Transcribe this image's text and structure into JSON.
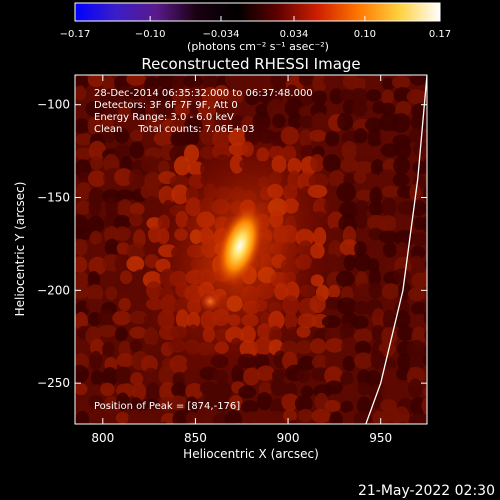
{
  "chart_data": {
    "type": "heatmap",
    "title": "Reconstructed RHESSI Image",
    "xlabel": "Heliocentric X (arcsec)",
    "ylabel": "Heliocentric Y (arcsec)",
    "xlim": [
      785,
      975
    ],
    "ylim": [
      -272,
      -84
    ],
    "x_ticks": [
      800,
      850,
      900,
      950
    ],
    "y_ticks": [
      -100,
      -150,
      -200,
      -250
    ],
    "x_tick_labels": [
      "800",
      "850",
      "900",
      "950"
    ],
    "y_tick_labels": [
      "−100",
      "−150",
      "−200",
      "−250"
    ],
    "colorbar": {
      "ticks": [
        -0.17,
        -0.1,
        -0.034,
        0.034,
        0.1,
        0.17
      ],
      "tick_labels": [
        "−0.17",
        "−0.10",
        "−0.034",
        "0.034",
        "0.10",
        "0.17"
      ],
      "unit_label": "(photons cm⁻² s⁻¹ asec⁻²)",
      "range": [
        -0.17,
        0.17
      ],
      "colors": [
        "#0000ff",
        "#3a1ec8",
        "#5a1a8c",
        "#1a0010",
        "#000000",
        "#600000",
        "#d02000",
        "#ff7800",
        "#ffd040",
        "#ffffff"
      ]
    },
    "annotations": [
      "28-Dec-2014 06:35:32.000 to 06:37:48.000",
      "Detectors: 3F 6F 7F 9F, Att 0",
      "Energy Range: 3.0 - 6.0 keV",
      "Clean     Total counts: 7.06E+03"
    ],
    "peak_label": "Position of Peak = [874,-176]",
    "peak": {
      "x": 874,
      "y": -176,
      "value": 0.17
    },
    "secondary_source": {
      "x": 858,
      "y": -206,
      "value": 0.09
    },
    "limb_points": [
      [
        975,
        -84
      ],
      [
        970,
        -140
      ],
      [
        962,
        -200
      ],
      [
        950,
        -250
      ],
      [
        942,
        -272
      ]
    ]
  },
  "timestamp": "21-May-2022 02:30"
}
